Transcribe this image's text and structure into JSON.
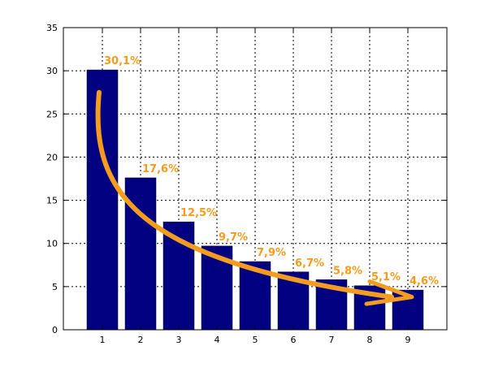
{
  "chart_data": {
    "type": "bar",
    "categories": [
      "1",
      "2",
      "3",
      "4",
      "5",
      "6",
      "7",
      "8",
      "9"
    ],
    "values": [
      30.1,
      17.6,
      12.5,
      9.7,
      7.9,
      6.7,
      5.8,
      5.1,
      4.6
    ],
    "data_labels": [
      "30,1%",
      "17,6%",
      "12,5%",
      "9,7%",
      "7,9%",
      "6,7%",
      "5,8%",
      "5,1%",
      "4,6%"
    ],
    "yticks": [
      "0",
      "5",
      "10",
      "15",
      "20",
      "25",
      "30",
      "35"
    ],
    "ylim": [
      0,
      35
    ],
    "grid": true,
    "title": "",
    "xlabel": "",
    "ylabel": "",
    "colors": {
      "bar": "#000080",
      "label": "#f39c1f",
      "trend_arrow": "#f39c1f"
    }
  }
}
